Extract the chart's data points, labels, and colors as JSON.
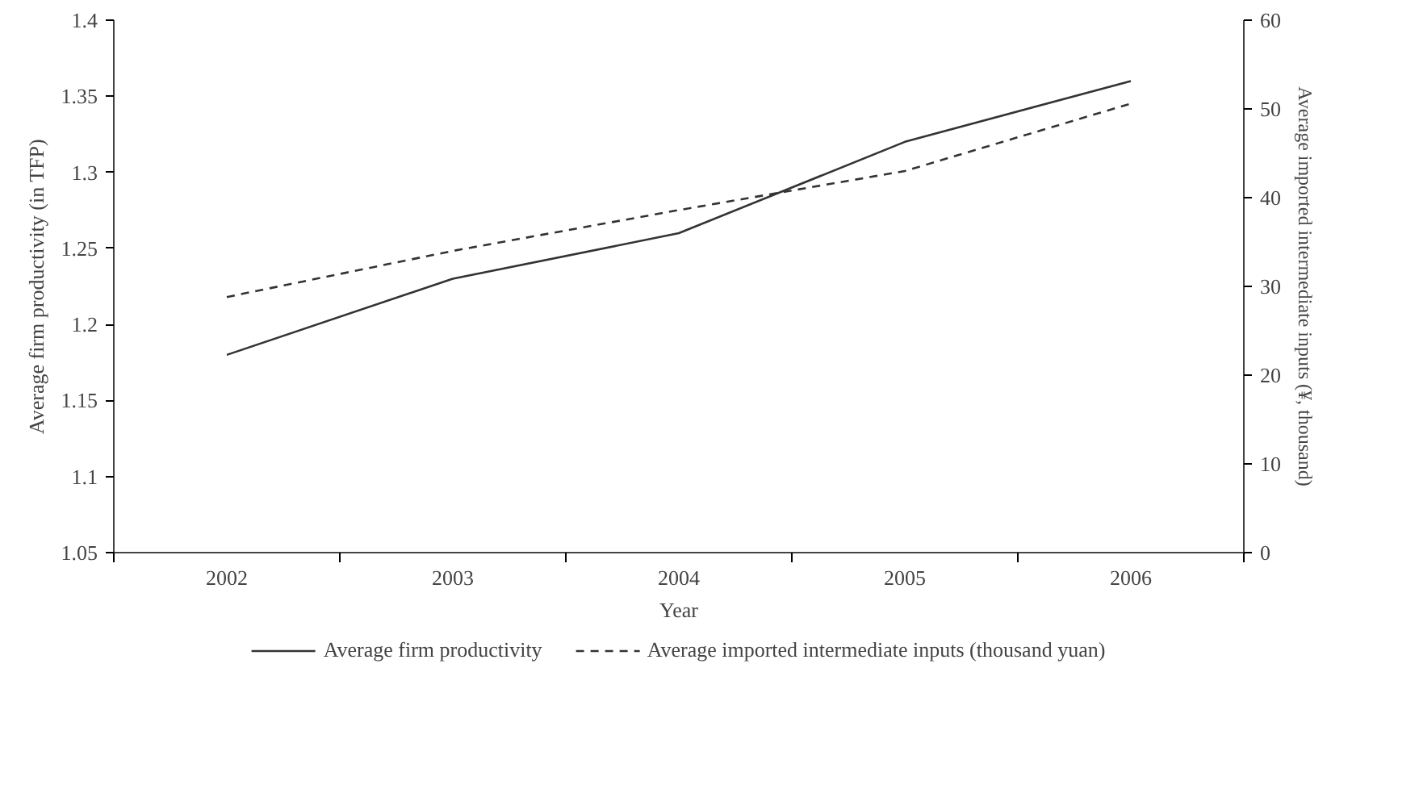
{
  "chart_data": {
    "type": "line",
    "categories": [
      "2002",
      "2003",
      "2004",
      "2005",
      "2006"
    ],
    "xlabel": "Year",
    "ylabel": "Average firm productivity (in TFP)",
    "y2label": "Average imported intermediate inputs (¥, thousand)",
    "ylim": [
      1.05,
      1.4
    ],
    "yticks": [
      1.05,
      1.1,
      1.15,
      1.2,
      1.25,
      1.3,
      1.35,
      1.4
    ],
    "y2lim": [
      0,
      60
    ],
    "y2ticks": [
      0,
      10,
      20,
      30,
      40,
      50,
      60
    ],
    "grid": false,
    "legend": "bottom",
    "marker": "none",
    "series": [
      {
        "name": "Average firm productivity",
        "color": "#333333",
        "line_style": "solid",
        "values": [
          1.18,
          1.23,
          1.26,
          1.32,
          1.36
        ]
      },
      {
        "name": "Average imported intermediate inputs (thousand yuan)",
        "color": "#333333",
        "line_style": "dashed",
        "axis": "y2",
        "values": [
          28.8,
          34,
          38.6,
          43,
          50.6
        ]
      }
    ]
  }
}
